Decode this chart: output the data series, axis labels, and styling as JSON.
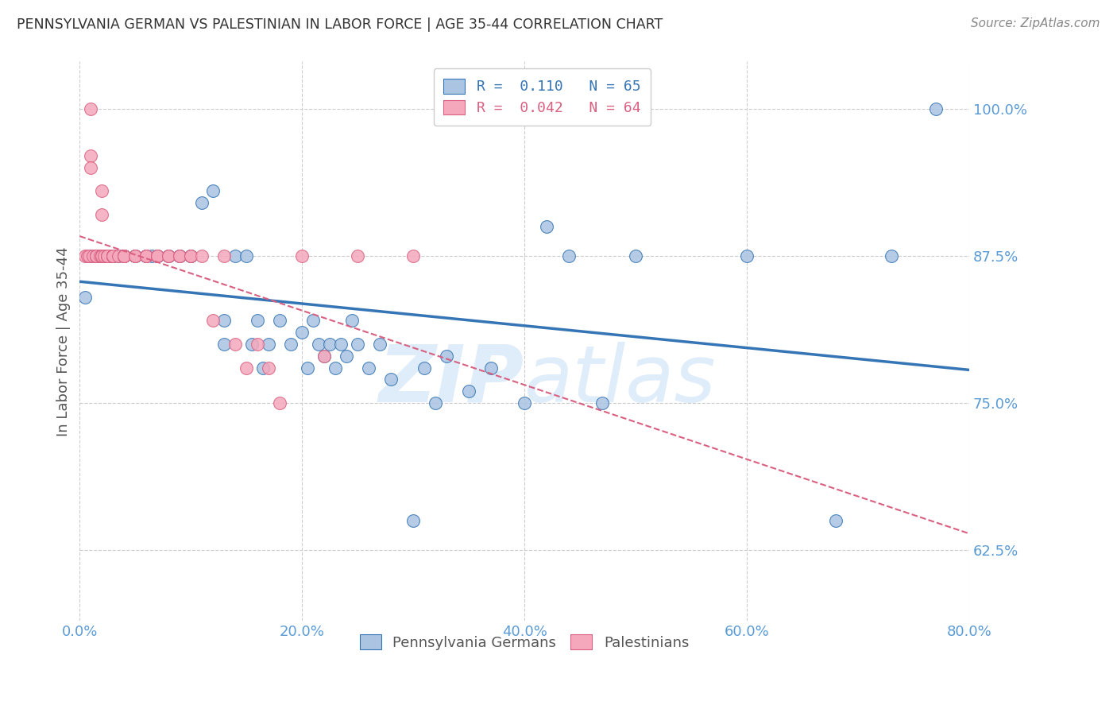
{
  "title": "PENNSYLVANIA GERMAN VS PALESTINIAN IN LABOR FORCE | AGE 35-44 CORRELATION CHART",
  "source": "Source: ZipAtlas.com",
  "ylabel": "In Labor Force | Age 35-44",
  "xlim": [
    0.0,
    0.8
  ],
  "ylim": [
    0.565,
    1.04
  ],
  "blue_R": 0.11,
  "blue_N": 65,
  "pink_R": 0.042,
  "pink_N": 64,
  "legend_label_blue": "Pennsylvania Germans",
  "legend_label_pink": "Palestinians",
  "scatter_blue_color": "#aac4e2",
  "scatter_pink_color": "#f5a8bc",
  "line_blue_color": "#3575b5",
  "line_pink_color": "#d96080",
  "title_color": "#333333",
  "axis_color": "#5b9bd5",
  "grid_color": "#cccccc",
  "blue_x": [
    0.005,
    0.01,
    0.015,
    0.02,
    0.02,
    0.025,
    0.03,
    0.03,
    0.035,
    0.04,
    0.04,
    0.05,
    0.05,
    0.06,
    0.06,
    0.065,
    0.07,
    0.07,
    0.08,
    0.08,
    0.09,
    0.09,
    0.1,
    0.1,
    0.11,
    0.12,
    0.13,
    0.13,
    0.14,
    0.15,
    0.155,
    0.16,
    0.165,
    0.17,
    0.18,
    0.19,
    0.2,
    0.205,
    0.21,
    0.215,
    0.22,
    0.225,
    0.23,
    0.235,
    0.24,
    0.245,
    0.25,
    0.26,
    0.27,
    0.28,
    0.3,
    0.31,
    0.32,
    0.33,
    0.35,
    0.37,
    0.4,
    0.42,
    0.44,
    0.47,
    0.5,
    0.6,
    0.68,
    0.73,
    0.77
  ],
  "blue_y": [
    0.84,
    0.875,
    0.875,
    0.875,
    0.875,
    0.875,
    0.875,
    0.875,
    0.875,
    0.875,
    0.875,
    0.875,
    0.875,
    0.875,
    0.875,
    0.875,
    0.875,
    0.875,
    0.875,
    0.875,
    0.875,
    0.875,
    0.875,
    0.875,
    0.92,
    0.93,
    0.82,
    0.8,
    0.875,
    0.875,
    0.8,
    0.82,
    0.78,
    0.8,
    0.82,
    0.8,
    0.81,
    0.78,
    0.82,
    0.8,
    0.79,
    0.8,
    0.78,
    0.8,
    0.79,
    0.82,
    0.8,
    0.78,
    0.8,
    0.77,
    0.65,
    0.78,
    0.75,
    0.79,
    0.76,
    0.78,
    0.75,
    0.9,
    0.875,
    0.75,
    0.875,
    0.875,
    0.65,
    0.875,
    1.0
  ],
  "pink_x": [
    0.005,
    0.007,
    0.008,
    0.01,
    0.01,
    0.01,
    0.012,
    0.015,
    0.015,
    0.015,
    0.018,
    0.02,
    0.02,
    0.02,
    0.02,
    0.02,
    0.022,
    0.025,
    0.025,
    0.025,
    0.03,
    0.03,
    0.03,
    0.03,
    0.03,
    0.03,
    0.03,
    0.03,
    0.03,
    0.03,
    0.035,
    0.04,
    0.04,
    0.04,
    0.04,
    0.04,
    0.04,
    0.05,
    0.05,
    0.05,
    0.06,
    0.06,
    0.06,
    0.07,
    0.07,
    0.07,
    0.08,
    0.08,
    0.09,
    0.09,
    0.1,
    0.1,
    0.11,
    0.12,
    0.13,
    0.14,
    0.15,
    0.16,
    0.17,
    0.18,
    0.2,
    0.22,
    0.25,
    0.3
  ],
  "pink_y": [
    0.875,
    0.875,
    0.875,
    1.0,
    0.96,
    0.95,
    0.875,
    0.875,
    0.875,
    0.875,
    0.875,
    0.875,
    0.875,
    0.875,
    0.93,
    0.91,
    0.875,
    0.875,
    0.875,
    0.875,
    0.875,
    0.875,
    0.875,
    0.875,
    0.875,
    0.875,
    0.875,
    0.875,
    0.875,
    0.875,
    0.875,
    0.875,
    0.875,
    0.875,
    0.875,
    0.875,
    0.875,
    0.875,
    0.875,
    0.875,
    0.875,
    0.875,
    0.875,
    0.875,
    0.875,
    0.875,
    0.875,
    0.875,
    0.875,
    0.875,
    0.875,
    0.875,
    0.875,
    0.82,
    0.875,
    0.8,
    0.78,
    0.8,
    0.78,
    0.75,
    0.875,
    0.79,
    0.875,
    0.875
  ]
}
